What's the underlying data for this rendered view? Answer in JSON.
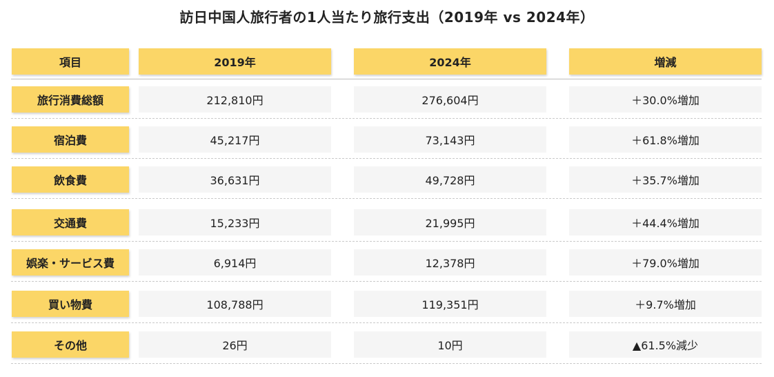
{
  "title": "訪日中国人旅行者の1人当たり旅行支出（2019年 vs 2024年）",
  "header": {
    "item": "項目",
    "col2019": "2019年",
    "col2024": "2024年",
    "change": "増減"
  },
  "rows": [
    {
      "label": "旅行消費総額",
      "v2019": "212,810円",
      "v2024": "276,604円",
      "change": "＋30.0%増加"
    },
    {
      "label": "宿泊費",
      "v2019": "45,217円",
      "v2024": "73,143円",
      "change": "＋61.8%増加"
    },
    {
      "label": "飲食費",
      "v2019": "36,631円",
      "v2024": "49,728円",
      "change": "＋35.7%増加"
    },
    {
      "label": "交通費",
      "v2019": "15,233円",
      "v2024": "21,995円",
      "change": "＋44.4%増加"
    },
    {
      "label": "娯楽・サービス費",
      "v2019": "6,914円",
      "v2024": "12,378円",
      "change": "＋79.0%増加"
    },
    {
      "label": "買い物費",
      "v2019": "108,788円",
      "v2024": "119,351円",
      "change": "＋9.7%増加"
    },
    {
      "label": "その他",
      "v2019": "26円",
      "v2024": "10円",
      "change": "▲61.5%減少"
    }
  ],
  "colors": {
    "header_fill": "#fbd667",
    "value_fill": "#f5f5f5",
    "divider": "#c9c9c9"
  },
  "chart_data": {
    "type": "table",
    "title": "訪日中国人旅行者の1人当たり旅行支出（2019年 vs 2024年）",
    "columns": [
      "項目",
      "2019年",
      "2024年",
      "増減"
    ],
    "categories": [
      "旅行消費総額",
      "宿泊費",
      "飲食費",
      "交通費",
      "娯楽・サービス費",
      "買い物費",
      "その他"
    ],
    "series": [
      {
        "name": "2019年",
        "values": [
          212810,
          45217,
          36631,
          15233,
          6914,
          108788,
          26
        ]
      },
      {
        "name": "2024年",
        "values": [
          276604,
          73143,
          49728,
          21995,
          12378,
          119351,
          10
        ]
      },
      {
        "name": "増減",
        "values": [
          30.0,
          61.8,
          35.7,
          44.4,
          79.0,
          9.7,
          -61.5
        ]
      }
    ],
    "units": {
      "2019年": "円",
      "2024年": "円",
      "増減": "%"
    }
  }
}
